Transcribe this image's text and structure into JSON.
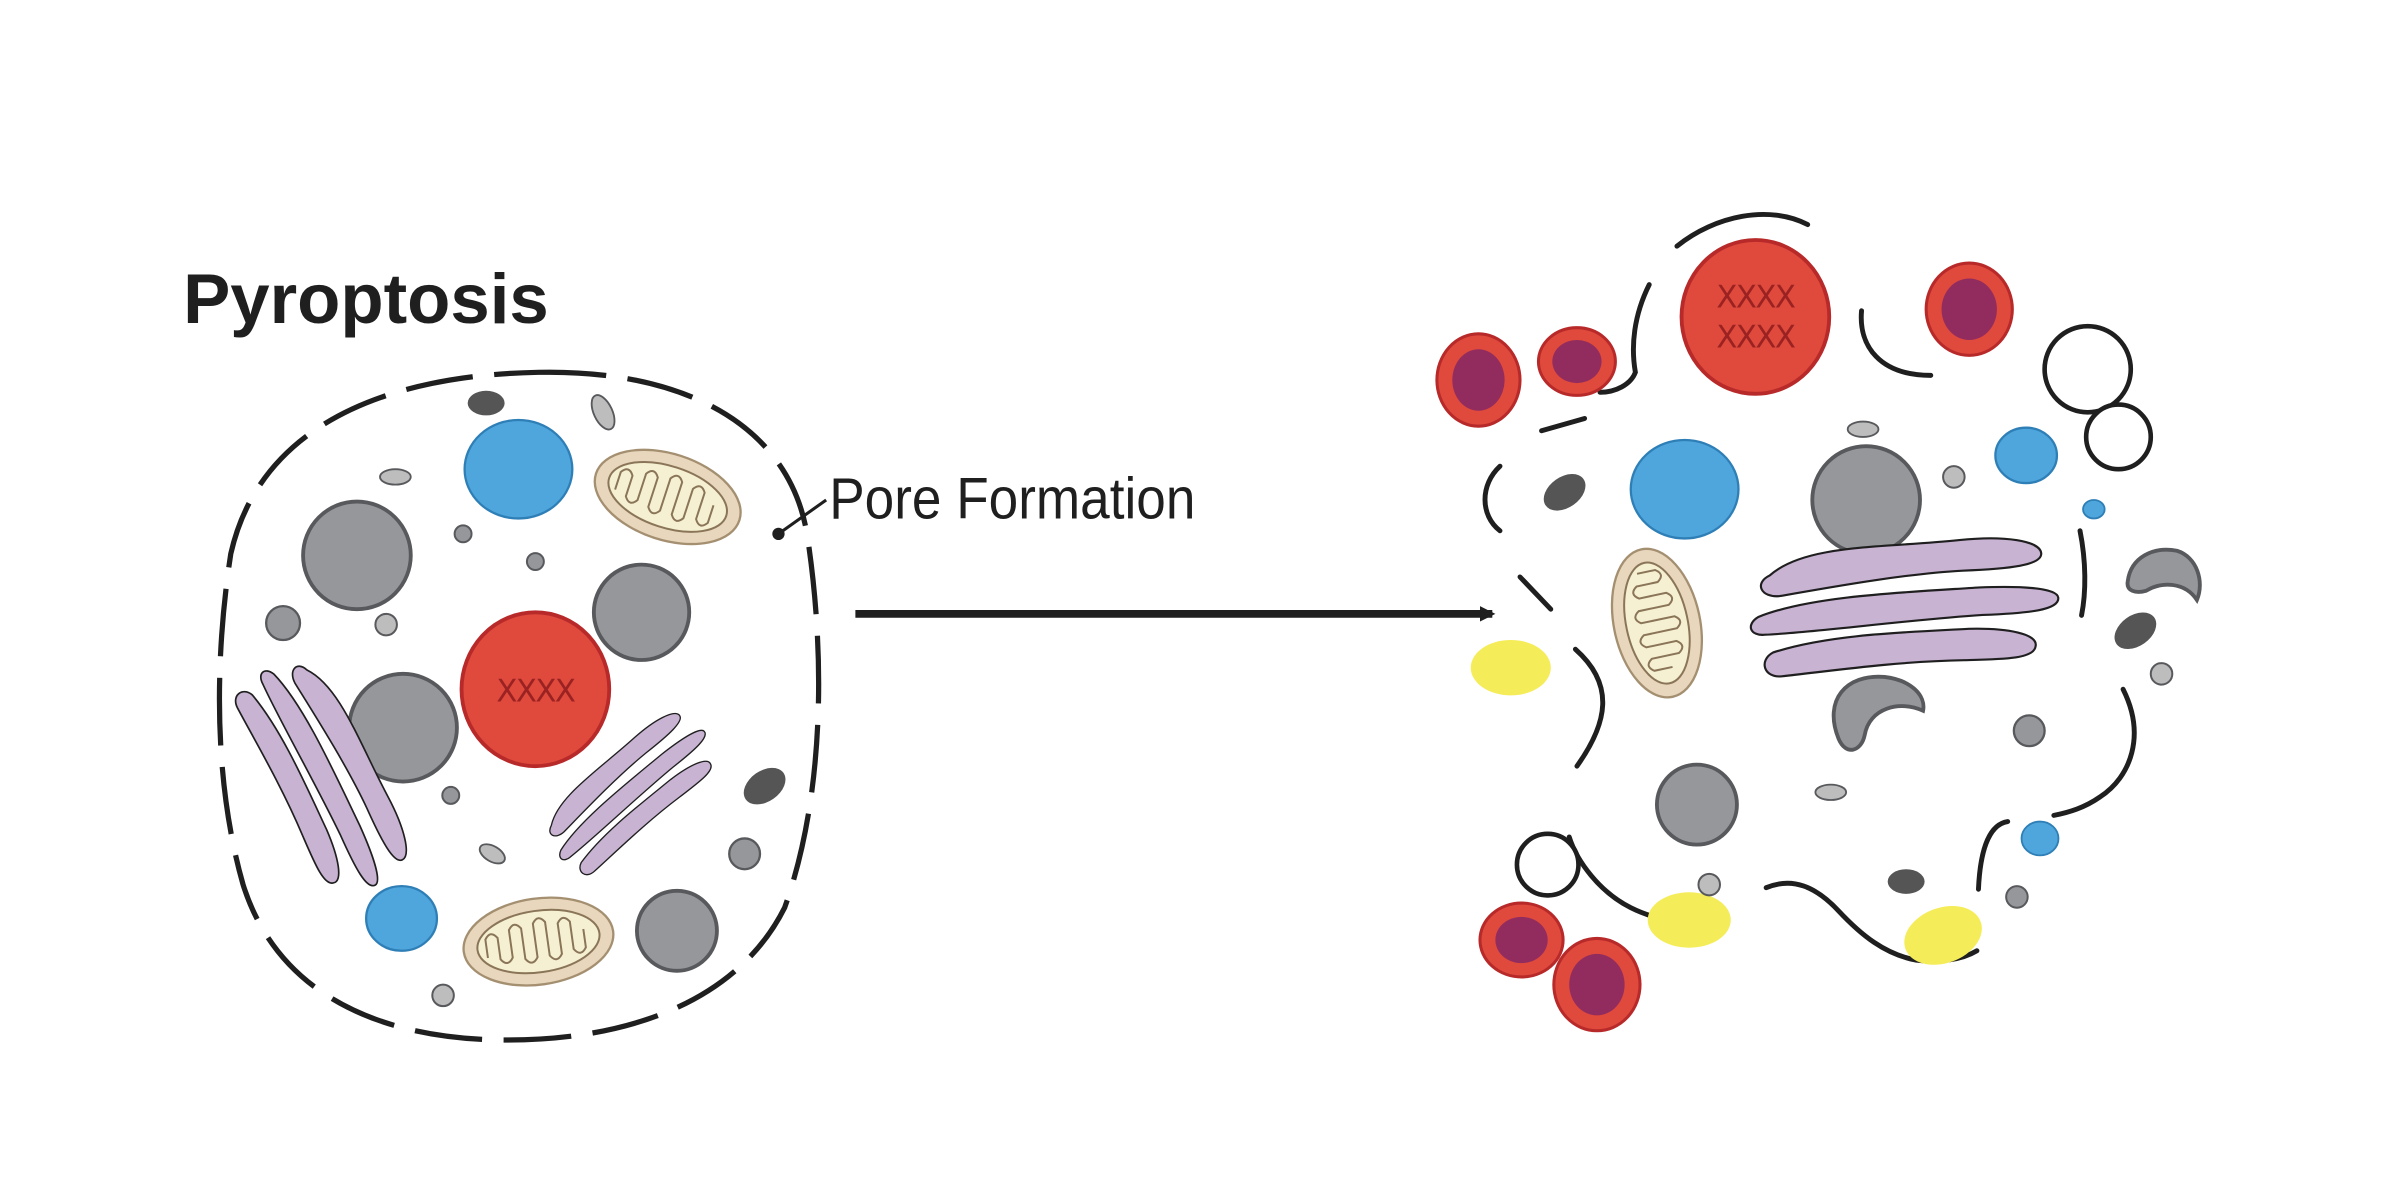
{
  "title": "Pyroptosis",
  "annotation": "Pore Formation",
  "nucleus_markings": {
    "intact": "XXXX",
    "ruptured_line1": "XXXX",
    "ruptured_line2": "XXXX"
  },
  "colors": {
    "outline": "#1f1f1f",
    "nucleus": "#e04a3c",
    "nucleus_edge": "#b82a2a",
    "vesicle_blue": "#4fa6dd",
    "organelle_gray": "#95979b",
    "granule_dark": "#555555",
    "golgi": "#c8b3d3",
    "mitochondrion": "#e8d7bd",
    "mito_inner": "#f6f0d2",
    "debris_yellow": "#f5ec5a",
    "apoptotic_body_inner": "#922c5e"
  }
}
